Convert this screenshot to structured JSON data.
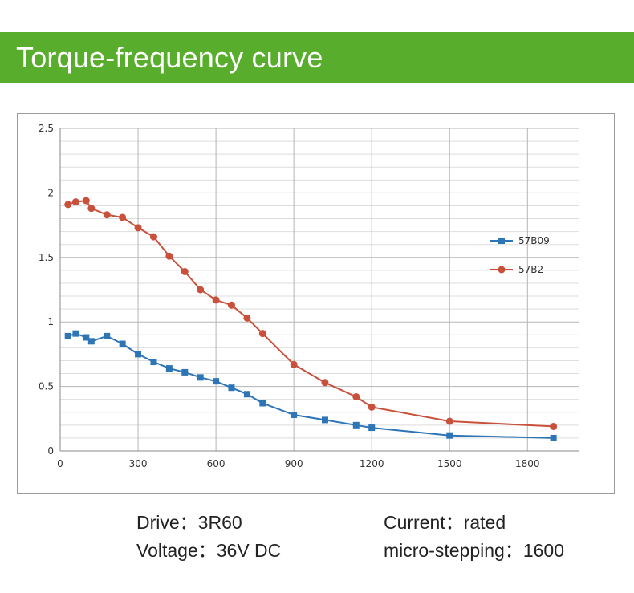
{
  "banner": {
    "title": "Torque-frequency curve",
    "color": "#58ad2c"
  },
  "specs": {
    "drive": "Drive：3R60",
    "current": "Current：rated",
    "voltage": "Voltage：36V DC",
    "microstepping": "micro-stepping：1600"
  },
  "chart_data": {
    "type": "line",
    "title": "",
    "xlabel": "",
    "ylabel": "",
    "xlim": [
      0,
      2000
    ],
    "ylim": [
      0,
      2.5
    ],
    "x_ticks": [
      0,
      300,
      600,
      900,
      1200,
      1500,
      1800
    ],
    "x_tick_labels": [
      "0",
      "300",
      "600",
      "900",
      "1200",
      "1500",
      "1800"
    ],
    "y_ticks": [
      0,
      0.5,
      1,
      1.5,
      2,
      2.5
    ],
    "y_tick_labels": [
      "0",
      "0.5",
      "1",
      "1.5",
      "2",
      "2.5"
    ],
    "y_minor_step": 0.1,
    "grid": true,
    "legend_position": "right",
    "series": [
      {
        "name": "57B09",
        "color": "#2e75b6",
        "marker": "square",
        "x": [
          30,
          60,
          100,
          120,
          180,
          240,
          300,
          360,
          420,
          480,
          540,
          600,
          660,
          720,
          780,
          900,
          1020,
          1140,
          1200,
          1500,
          1900
        ],
        "y": [
          0.89,
          0.91,
          0.88,
          0.85,
          0.89,
          0.83,
          0.75,
          0.69,
          0.64,
          0.61,
          0.57,
          0.54,
          0.49,
          0.44,
          0.37,
          0.28,
          0.24,
          0.2,
          0.18,
          0.12,
          0.1
        ]
      },
      {
        "name": "57B2",
        "color": "#c9503a",
        "marker": "circle",
        "x": [
          30,
          60,
          100,
          120,
          180,
          240,
          300,
          360,
          420,
          480,
          540,
          600,
          660,
          720,
          780,
          900,
          1020,
          1140,
          1200,
          1500,
          1900
        ],
        "y": [
          1.91,
          1.93,
          1.94,
          1.88,
          1.83,
          1.81,
          1.73,
          1.66,
          1.51,
          1.39,
          1.25,
          1.17,
          1.13,
          1.03,
          0.91,
          0.67,
          0.53,
          0.42,
          0.34,
          0.23,
          0.19
        ]
      }
    ]
  }
}
